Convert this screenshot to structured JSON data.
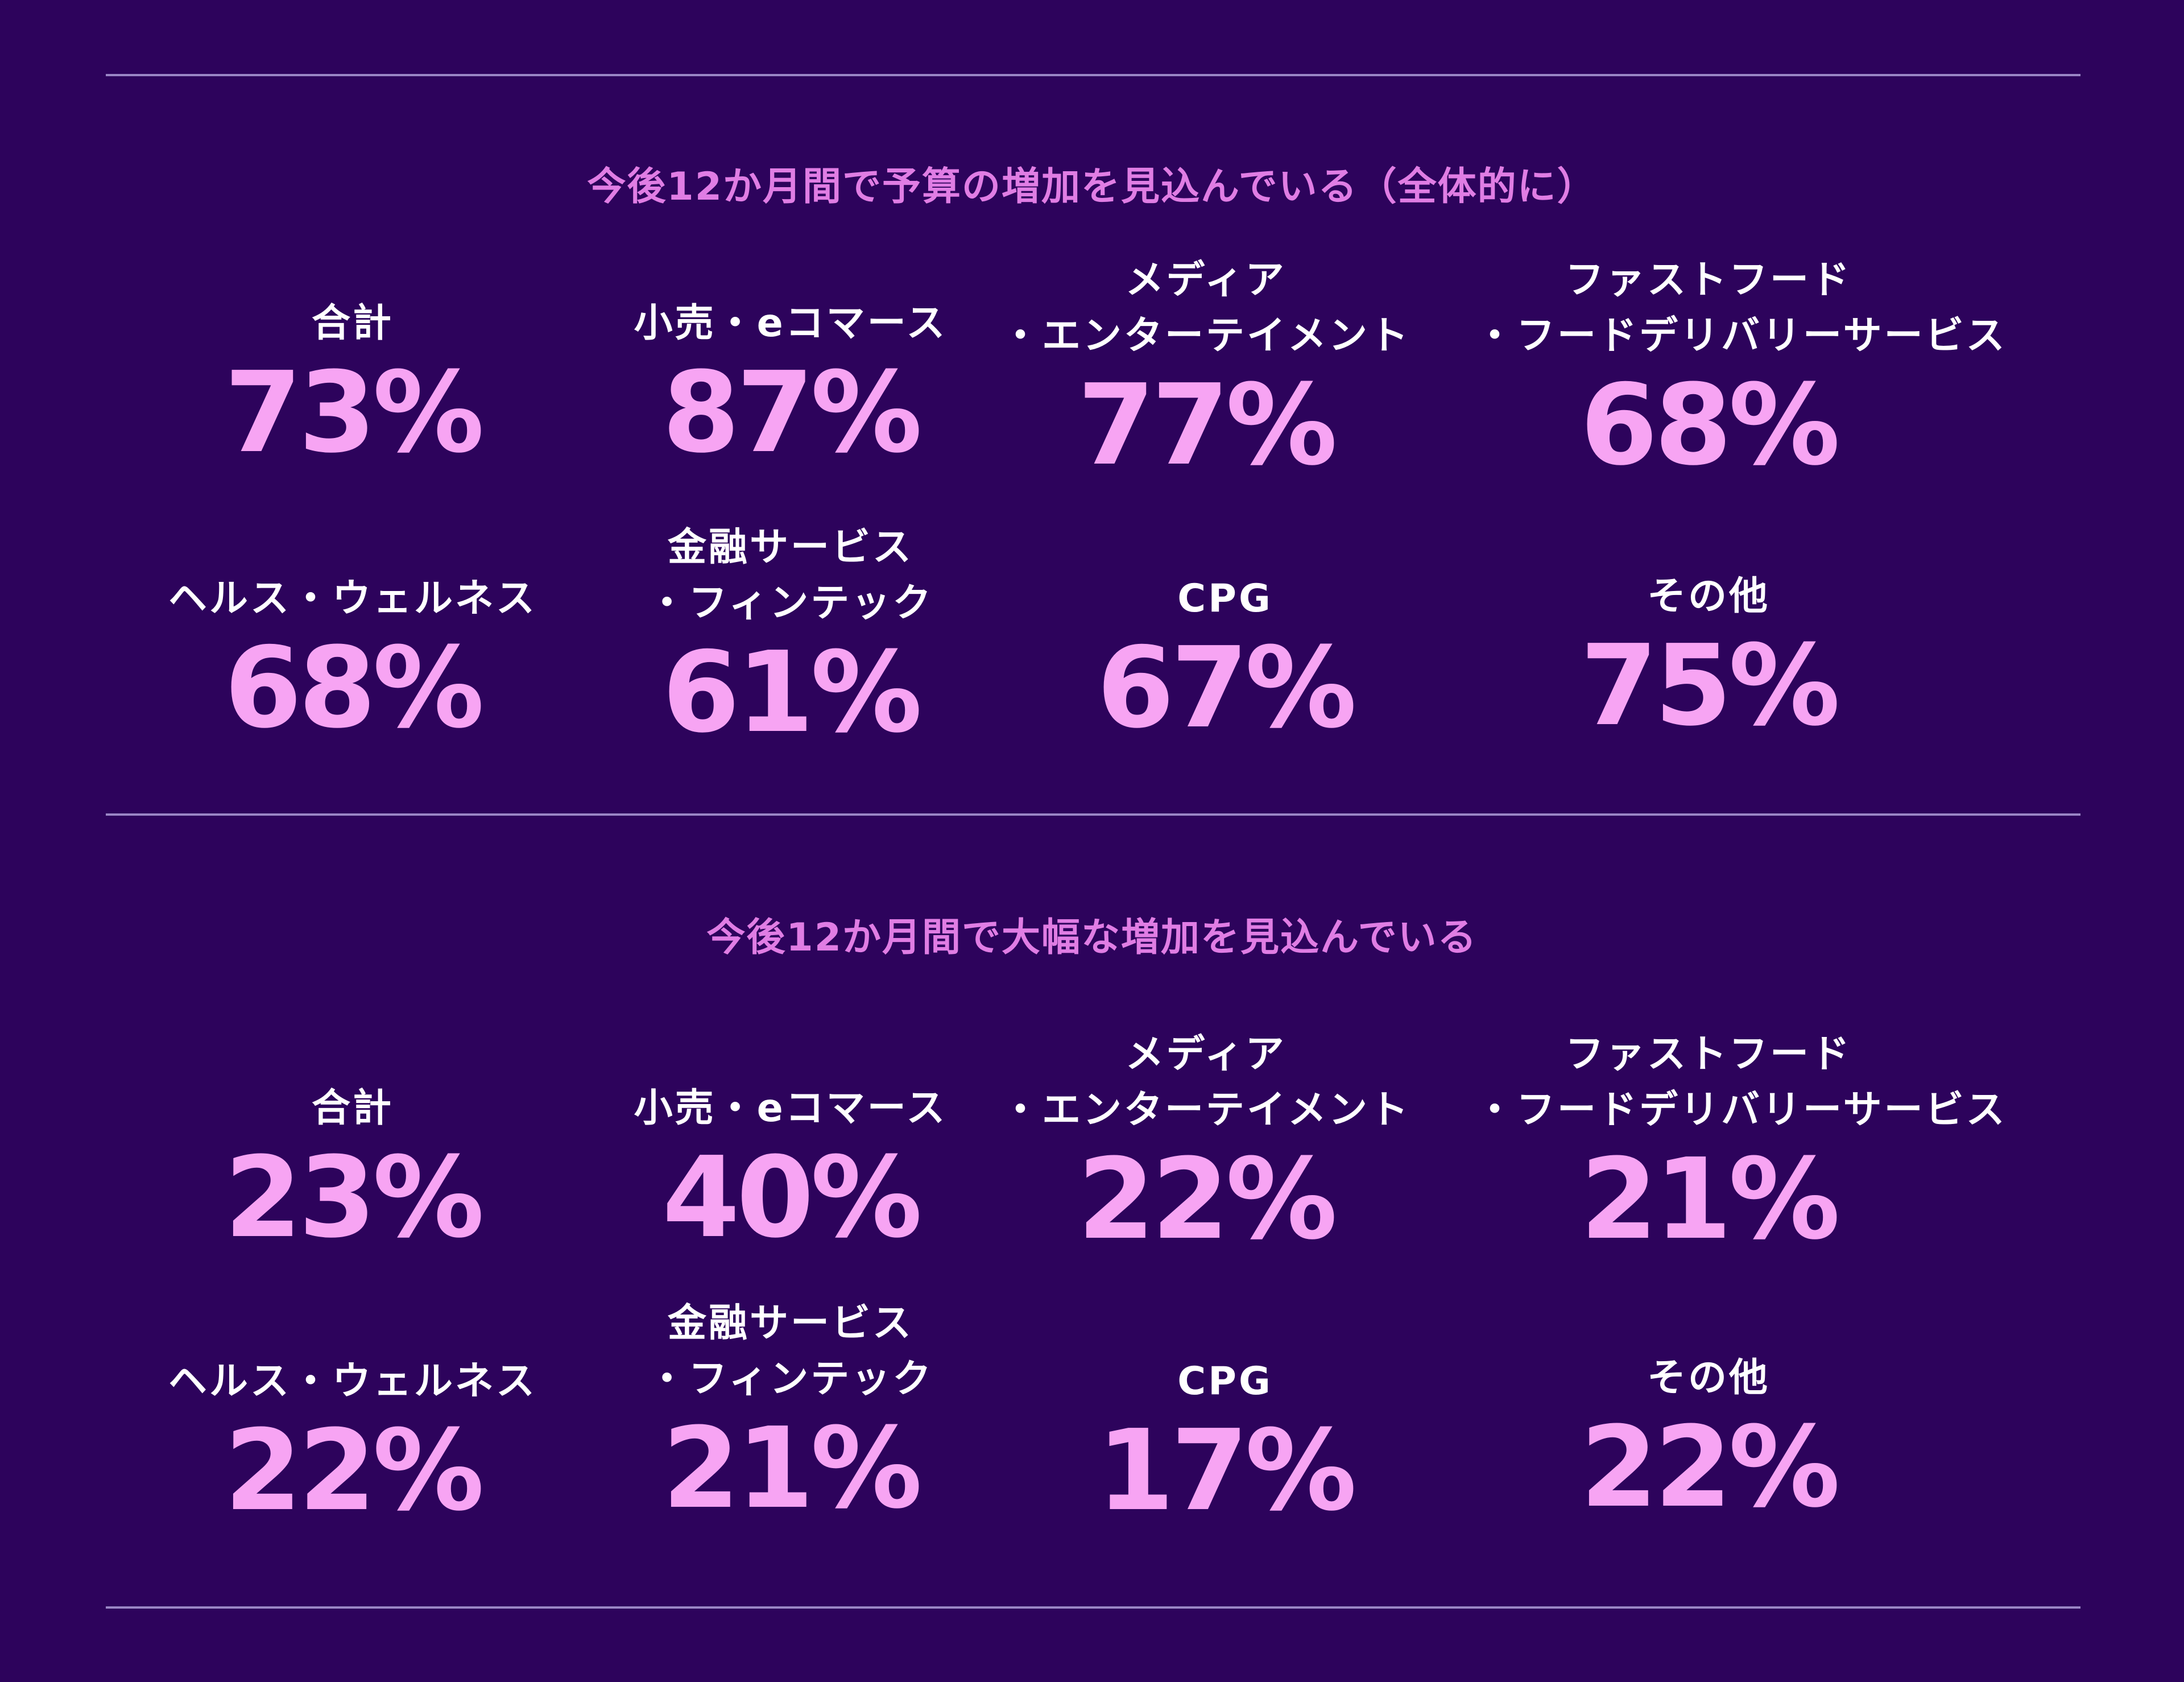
{
  "sections": [
    {
      "title": "今後12か月間で予算の増加を見込んでいる（全体的に）",
      "stats": [
        {
          "label": [
            "合計"
          ],
          "value": "73%"
        },
        {
          "label": [
            "小売・eコマース"
          ],
          "value": "87%"
        },
        {
          "label": [
            "メディア",
            "・エンターテイメント"
          ],
          "value": "77%"
        },
        {
          "label": [
            "ファストフード",
            "・フードデリバリーサービス"
          ],
          "value": "68%"
        },
        {
          "label": [
            "ヘルス・ウェルネス"
          ],
          "value": "68%"
        },
        {
          "label": [
            "金融サービス",
            "・フィンテック"
          ],
          "value": "61%"
        },
        {
          "label": [
            "CPG"
          ],
          "value": "67%"
        },
        {
          "label": [
            "その他"
          ],
          "value": "75%"
        }
      ]
    },
    {
      "title": "今後12か月間で大幅な増加を見込んでいる",
      "stats": [
        {
          "label": [
            "合計"
          ],
          "value": "23%"
        },
        {
          "label": [
            "小売・eコマース"
          ],
          "value": "40%"
        },
        {
          "label": [
            "メディア",
            "・エンターテイメント"
          ],
          "value": "22%"
        },
        {
          "label": [
            "ファストフード",
            "・フードデリバリーサービス"
          ],
          "value": "21%"
        },
        {
          "label": [
            "ヘルス・ウェルネス"
          ],
          "value": "22%"
        },
        {
          "label": [
            "金融サービス",
            "・フィンテック"
          ],
          "value": "21%"
        },
        {
          "label": [
            "CPG"
          ],
          "value": "17%"
        },
        {
          "label": [
            "その他"
          ],
          "value": "22%"
        }
      ]
    }
  ],
  "colors": {
    "background": "#2d035c",
    "title": "#e07de4",
    "label": "#ffffff",
    "value": "#f7a4f3",
    "rule": "#9a86c6"
  }
}
